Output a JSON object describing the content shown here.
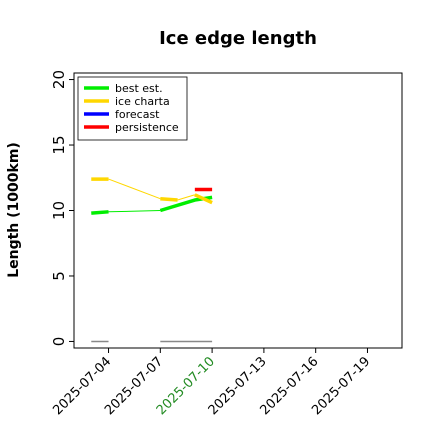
{
  "chart_data": {
    "type": "line",
    "title": "Ice edge length",
    "xlabel": "",
    "ylabel": "Length (1000km)",
    "ylim": [
      -0.5,
      20.5
    ],
    "xlim": [
      "2025-07-02",
      "2025-07-21"
    ],
    "y_ticks": [
      "0",
      "5",
      "10",
      "15",
      "20"
    ],
    "x_ticks": [
      "2025-07-04",
      "2025-07-07",
      "2025-07-10",
      "2025-07-13",
      "2025-07-16",
      "2025-07-19"
    ],
    "highlight_x_tick": "2025-07-10",
    "highlight_color": "#228b22",
    "legend": {
      "placement": "top-left"
    },
    "series": [
      {
        "name": "best est.",
        "color": "#00ee00",
        "segments": [
          {
            "x": [
              "2025-07-03",
              "2025-07-04"
            ],
            "y": [
              9.8,
              9.9
            ],
            "weight": "thick"
          },
          {
            "x": [
              "2025-07-04",
              "2025-07-07"
            ],
            "y": [
              9.9,
              10.0
            ],
            "weight": "thin"
          },
          {
            "x": [
              "2025-07-07",
              "2025-07-09",
              "2025-07-10"
            ],
            "y": [
              10.0,
              10.8,
              11.0
            ],
            "weight": "thick"
          }
        ]
      },
      {
        "name": "ice charta",
        "color": "#ffd700",
        "segments": [
          {
            "x": [
              "2025-07-03",
              "2025-07-04"
            ],
            "y": [
              12.4,
              12.4
            ],
            "weight": "thick"
          },
          {
            "x": [
              "2025-07-04",
              "2025-07-07"
            ],
            "y": [
              12.4,
              10.9
            ],
            "weight": "thin"
          },
          {
            "x": [
              "2025-07-07",
              "2025-07-08"
            ],
            "y": [
              10.9,
              10.8
            ],
            "weight": "thick"
          },
          {
            "x": [
              "2025-07-08",
              "2025-07-09"
            ],
            "y": [
              10.8,
              11.2
            ],
            "weight": "thin"
          },
          {
            "x": [
              "2025-07-09",
              "2025-07-10"
            ],
            "y": [
              11.2,
              10.6
            ],
            "weight": "thick"
          }
        ]
      },
      {
        "name": "forecast",
        "color": "#0000ff",
        "segments": []
      },
      {
        "name": "persistence",
        "color": "#ff0000",
        "segments": [
          {
            "x": [
              "2025-07-09",
              "2025-07-10"
            ],
            "y": [
              11.6,
              11.6
            ],
            "weight": "thick"
          }
        ]
      }
    ],
    "baseline_marks": {
      "color": "#888888",
      "segments": [
        {
          "x": [
            "2025-07-03",
            "2025-07-04"
          ],
          "y": [
            0,
            0
          ]
        },
        {
          "x": [
            "2025-07-07",
            "2025-07-10"
          ],
          "y": [
            0,
            0
          ]
        }
      ]
    }
  }
}
